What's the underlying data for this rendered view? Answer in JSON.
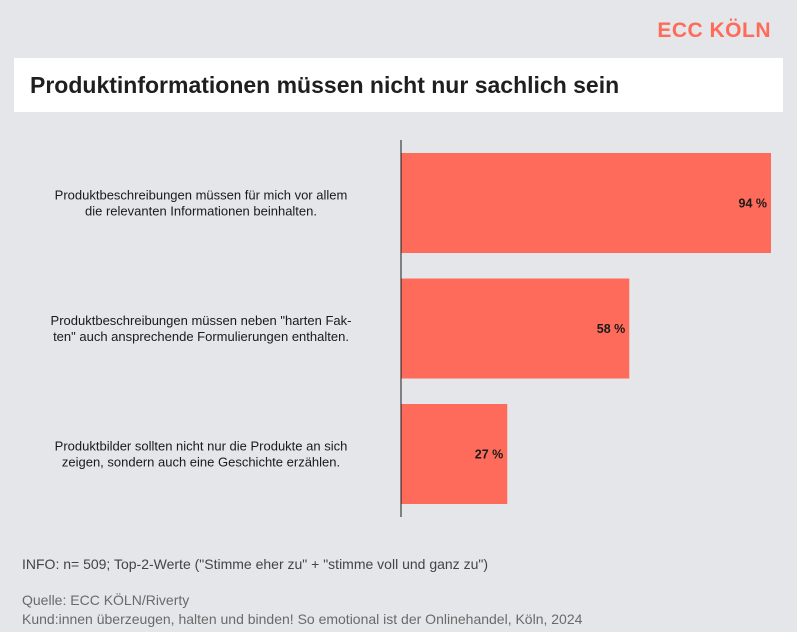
{
  "brand": "ECC KÖLN",
  "title": "Produktinformationen müssen nicht nur sachlich sein",
  "chart_data": {
    "type": "bar",
    "orientation": "horizontal",
    "categories": [
      [
        "Produktbeschreibungen müssen für mich vor allem",
        "die relevanten Informationen beinhalten."
      ],
      [
        "Produktbeschreibungen müssen neben \"harten Fak-",
        "ten\" auch ansprechende Formulierungen enthalten."
      ],
      [
        "Produktbilder sollten nicht nur die Produkte an sich",
        "zeigen, sondern auch eine Geschichte erzählen."
      ]
    ],
    "values": [
      94,
      58,
      27
    ],
    "value_labels": [
      "94 %",
      "58 %",
      "27 %"
    ],
    "unit": "%",
    "xlim": [
      0,
      94
    ],
    "bar_color": "#ff6b5a",
    "grid": false
  },
  "info": "INFO: n= 509;  Top-2-Werte (\"Stimme eher zu\" + \"stimme voll und ganz zu\")",
  "source_line1": "Quelle: ECC KÖLN/Riverty",
  "source_line2": "Kund:innen überzeugen, halten und binden! So emotional ist der Onlinehandel, Köln, 2024"
}
